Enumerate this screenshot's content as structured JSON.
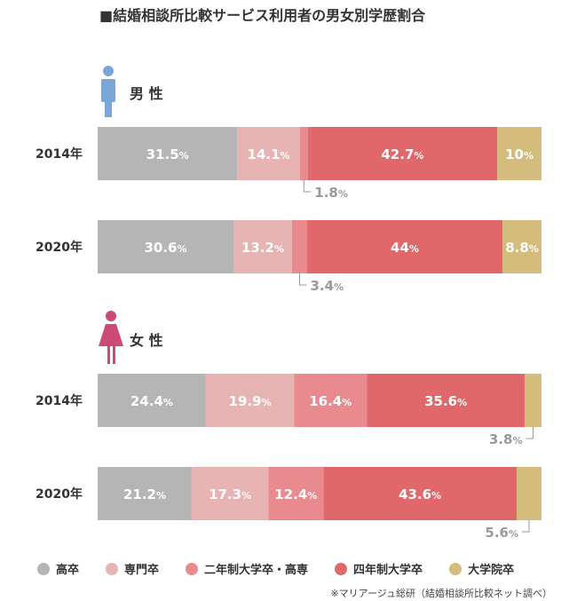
{
  "title": "■結婚相談所比較サービス利用者の男女別学歴割合",
  "source": "※マリアージュ総研（結婚相談所比較ネット調べ）",
  "colors": {
    "高卒": "#b5b5b5",
    "専門卒": "#e8b3b3",
    "二年制大学卒・高専": "#e98a8e",
    "四年制大学卒": "#e0676a",
    "大学院卒": "#d3bc7c",
    "male_icon": "#7aa7d8",
    "female_icon": "#cc4a78"
  },
  "chart_data": {
    "type": "bar",
    "stacked": "100%",
    "orientation": "horizontal",
    "categories": [
      "高卒",
      "専門卒",
      "二年制大学卒・高専",
      "四年制大学卒",
      "大学院卒"
    ],
    "groups": [
      {
        "label": "男 性",
        "icon": "male-icon",
        "rows": [
          {
            "year": "2014年",
            "values": [
              31.5,
              14.1,
              1.8,
              42.7,
              10
            ],
            "labels": [
              "31.5%",
              "14.1%",
              "1.8%",
              "42.7%",
              "10%"
            ]
          },
          {
            "year": "2020年",
            "values": [
              30.6,
              13.2,
              3.4,
              44,
              8.8
            ],
            "labels": [
              "30.6%",
              "13.2%",
              "3.4%",
              "44%",
              "8.8%"
            ]
          }
        ]
      },
      {
        "label": "女 性",
        "icon": "female-icon",
        "rows": [
          {
            "year": "2014年",
            "values": [
              24.4,
              19.9,
              16.4,
              35.6,
              3.8
            ],
            "labels": [
              "24.4%",
              "19.9%",
              "16.4%",
              "35.6%",
              "3.8%"
            ]
          },
          {
            "year": "2020年",
            "values": [
              21.2,
              17.3,
              12.4,
              43.6,
              5.6
            ],
            "labels": [
              "21.2%",
              "17.3%",
              "12.4%",
              "43.6%",
              "5.6%"
            ]
          }
        ]
      }
    ],
    "legend_position": "bottom"
  }
}
